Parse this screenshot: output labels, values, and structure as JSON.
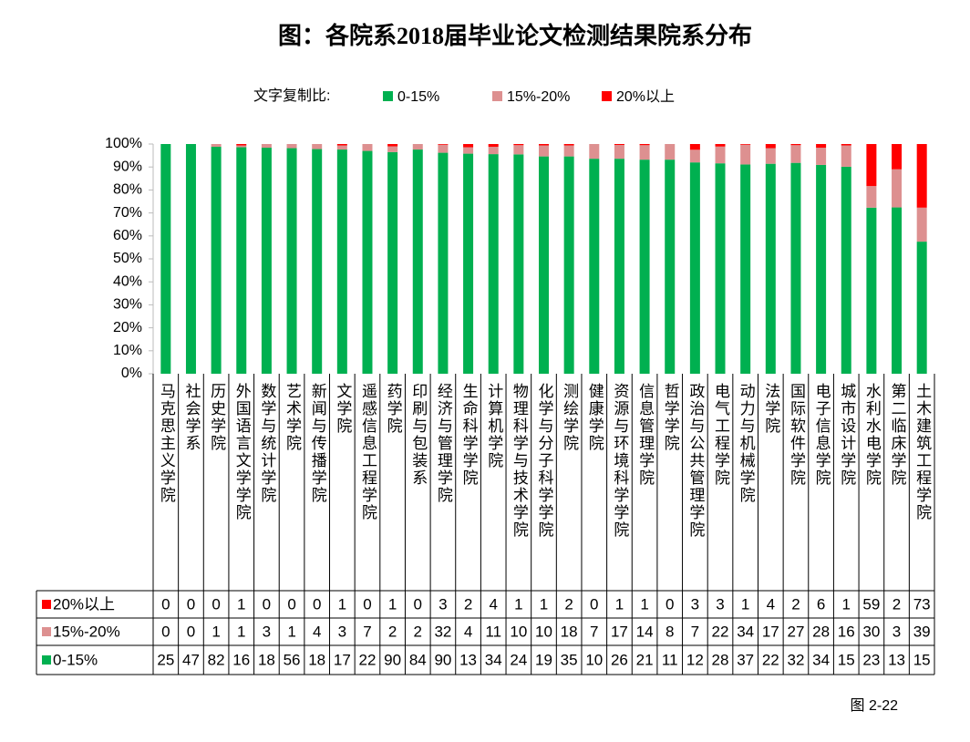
{
  "chart_data": {
    "type": "bar",
    "stacked": true,
    "title": "图：各院系2018届毕业论文检测结果院系分布",
    "legend_title": "文字复制比:",
    "footer": "图 2-22",
    "categories": [
      "马克思主义学院",
      "社会学系",
      "历史学院",
      "外国语言文学学院",
      "数学与统计学院",
      "艺术学院",
      "新闻与传播学院",
      "文学院",
      "遥感信息工程学院",
      "药学院",
      "印刷与包装系",
      "经济与管理学院",
      "生命科学学院",
      "计算机学院",
      "物理科学与技术学院",
      "化学与分子科学学院",
      "测绘学院",
      "健康学院",
      "资源与环境科学学院",
      "信息管理学院",
      "哲学学院",
      "政治与公共管理学院",
      "电气工程学院",
      "动力与机械学院",
      "法学院",
      "国际软件学院",
      "电子信息学院",
      "城市设计学院",
      "水利水电学院",
      "第二临床学院",
      "土木建筑工程学院"
    ],
    "series": [
      {
        "name": "0-15%",
        "color": "#00b050",
        "values": [
          100,
          100,
          98.8,
          98.6,
          98.4,
          98.2,
          97.8,
          97.6,
          97,
          96.5,
          97.6,
          96.2,
          95.8,
          95.6,
          95.5,
          94.6,
          94.6,
          93.6,
          93.6,
          93.2,
          93.2,
          92,
          91.6,
          91.1,
          91.4,
          91.8,
          90.9,
          90.1,
          72.3,
          72.4,
          57.5
        ],
        "counts": [
          25,
          47,
          82,
          16,
          18,
          56,
          18,
          17,
          22,
          90,
          84,
          90,
          13,
          34,
          24,
          19,
          35,
          10,
          26,
          21,
          11,
          12,
          28,
          37,
          22,
          32,
          34,
          15,
          23,
          13,
          15
        ]
      },
      {
        "name": "15%-20%",
        "color": "#dd9090",
        "values": [
          0,
          0,
          1.2,
          0.8,
          1.6,
          1.8,
          2.2,
          1.8,
          3,
          2.5,
          2.4,
          3.5,
          2.8,
          3.2,
          4,
          4.8,
          4.8,
          6.4,
          6,
          6.3,
          6.8,
          5.5,
          7.3,
          8.6,
          6.8,
          7.7,
          7.5,
          9.3,
          9.4,
          16.6,
          14.8
        ],
        "counts": [
          0,
          0,
          1,
          1,
          3,
          1,
          4,
          3,
          7,
          2,
          2,
          32,
          4,
          11,
          10,
          10,
          18,
          7,
          17,
          14,
          8,
          7,
          22,
          34,
          17,
          27,
          28,
          16,
          30,
          3,
          39
        ]
      },
      {
        "name": "20%以上",
        "color": "#ff0000",
        "values": [
          0,
          0,
          0,
          0.6,
          0,
          0,
          0,
          0.6,
          0,
          1,
          0,
          0.3,
          1.4,
          1.2,
          0.5,
          0.6,
          0.6,
          0,
          0.4,
          0.5,
          0,
          2.5,
          1.1,
          0.3,
          1.8,
          0.5,
          1.6,
          0.6,
          18.3,
          11,
          27.7
        ],
        "counts": [
          0,
          0,
          0,
          1,
          0,
          0,
          0,
          1,
          0,
          1,
          0,
          3,
          2,
          4,
          1,
          1,
          2,
          0,
          1,
          1,
          0,
          3,
          3,
          1,
          4,
          2,
          6,
          1,
          59,
          2,
          73
        ]
      }
    ],
    "ylim": [
      0,
      100
    ],
    "yticks": [
      {
        "value": 0,
        "label": "0%"
      },
      {
        "value": 10,
        "label": "10%"
      },
      {
        "value": 20,
        "label": "20%"
      },
      {
        "value": 30,
        "label": "30%"
      },
      {
        "value": 40,
        "label": "40%"
      },
      {
        "value": 50,
        "label": "50%"
      },
      {
        "value": 60,
        "label": "60%"
      },
      {
        "value": 70,
        "label": "70%"
      },
      {
        "value": 80,
        "label": "80%"
      },
      {
        "value": 90,
        "label": "90%"
      },
      {
        "value": 100,
        "label": "100%"
      }
    ],
    "grid": false
  }
}
